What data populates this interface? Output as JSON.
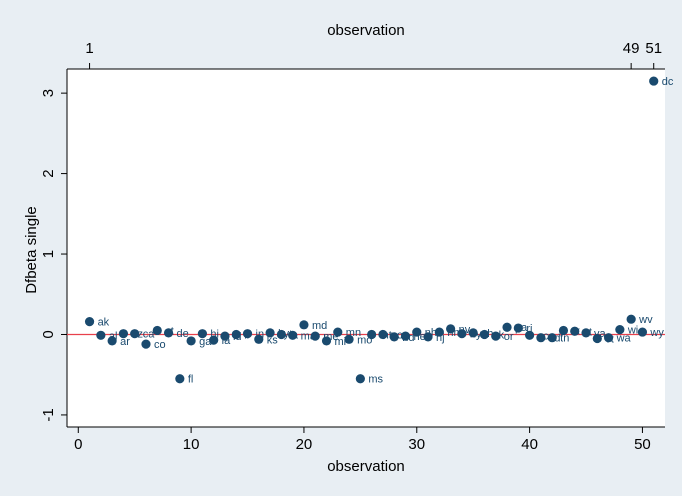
{
  "chart_data": {
    "type": "scatter",
    "xlabel": "observation",
    "ylabel": "Dfbeta single",
    "top_axis_title": "observation",
    "top_ticks": [
      1,
      49,
      51
    ],
    "xlim": [
      -1,
      52
    ],
    "ylim": [
      -1.15,
      3.3
    ],
    "xticks": [
      0,
      10,
      20,
      30,
      40,
      50
    ],
    "yticks": [
      -1,
      0,
      1,
      2,
      3
    ],
    "reference_line_y": 0,
    "grid": false,
    "colors": {
      "marker": "#1a4a6e",
      "refline": "#e8404c",
      "plot_bg": "#ffffff",
      "page_bg": "#e8eef3"
    },
    "points": [
      {
        "x": 1,
        "y": 0.16,
        "label": "ak"
      },
      {
        "x": 2,
        "y": -0.01,
        "label": "al"
      },
      {
        "x": 3,
        "y": -0.08,
        "label": "ar"
      },
      {
        "x": 4,
        "y": 0.01,
        "label": "az"
      },
      {
        "x": 5,
        "y": 0.01,
        "label": "ca"
      },
      {
        "x": 6,
        "y": -0.12,
        "label": "co"
      },
      {
        "x": 7,
        "y": 0.05,
        "label": "ct"
      },
      {
        "x": 8,
        "y": 0.02,
        "label": "de"
      },
      {
        "x": 9,
        "y": -0.55,
        "label": "fl"
      },
      {
        "x": 10,
        "y": -0.08,
        "label": "ga"
      },
      {
        "x": 11,
        "y": 0.01,
        "label": "hi"
      },
      {
        "x": 12,
        "y": -0.07,
        "label": "ia"
      },
      {
        "x": 13,
        "y": -0.02,
        "label": "id"
      },
      {
        "x": 14,
        "y": 0.0,
        "label": "il"
      },
      {
        "x": 15,
        "y": 0.01,
        "label": "in"
      },
      {
        "x": 16,
        "y": -0.06,
        "label": "ks"
      },
      {
        "x": 17,
        "y": 0.02,
        "label": "ky"
      },
      {
        "x": 18,
        "y": 0.0,
        "label": "la"
      },
      {
        "x": 19,
        "y": -0.01,
        "label": "ma"
      },
      {
        "x": 20,
        "y": 0.12,
        "label": "md"
      },
      {
        "x": 21,
        "y": -0.02,
        "label": "me"
      },
      {
        "x": 22,
        "y": -0.08,
        "label": "mi"
      },
      {
        "x": 23,
        "y": 0.03,
        "label": "mn"
      },
      {
        "x": 24,
        "y": -0.06,
        "label": "mo"
      },
      {
        "x": 25,
        "y": -0.55,
        "label": "ms"
      },
      {
        "x": 26,
        "y": 0.0,
        "label": "mt"
      },
      {
        "x": 27,
        "y": 0.0,
        "label": "nc"
      },
      {
        "x": 28,
        "y": -0.03,
        "label": "nd"
      },
      {
        "x": 29,
        "y": -0.02,
        "label": "ne"
      },
      {
        "x": 30,
        "y": 0.03,
        "label": "nh"
      },
      {
        "x": 31,
        "y": -0.03,
        "label": "nj"
      },
      {
        "x": 32,
        "y": 0.03,
        "label": "nm"
      },
      {
        "x": 33,
        "y": 0.07,
        "label": "nv"
      },
      {
        "x": 34,
        "y": 0.01,
        "label": "ny"
      },
      {
        "x": 35,
        "y": 0.02,
        "label": "oh"
      },
      {
        "x": 36,
        "y": 0.0,
        "label": "ok"
      },
      {
        "x": 37,
        "y": -0.02,
        "label": "or"
      },
      {
        "x": 38,
        "y": 0.09,
        "label": "pa"
      },
      {
        "x": 39,
        "y": 0.08,
        "label": "ri"
      },
      {
        "x": 40,
        "y": -0.01,
        "label": "sc"
      },
      {
        "x": 41,
        "y": -0.04,
        "label": "sd"
      },
      {
        "x": 42,
        "y": -0.04,
        "label": "tn"
      },
      {
        "x": 43,
        "y": 0.05,
        "label": "tx"
      },
      {
        "x": 44,
        "y": 0.04,
        "label": "ut"
      },
      {
        "x": 45,
        "y": 0.02,
        "label": "va"
      },
      {
        "x": 46,
        "y": -0.05,
        "label": "vt"
      },
      {
        "x": 47,
        "y": -0.04,
        "label": "wa"
      },
      {
        "x": 48,
        "y": 0.06,
        "label": "wi"
      },
      {
        "x": 49,
        "y": 0.19,
        "label": "wv"
      },
      {
        "x": 50,
        "y": 0.03,
        "label": "wy"
      },
      {
        "x": 51,
        "y": 3.15,
        "label": "dc"
      }
    ]
  }
}
